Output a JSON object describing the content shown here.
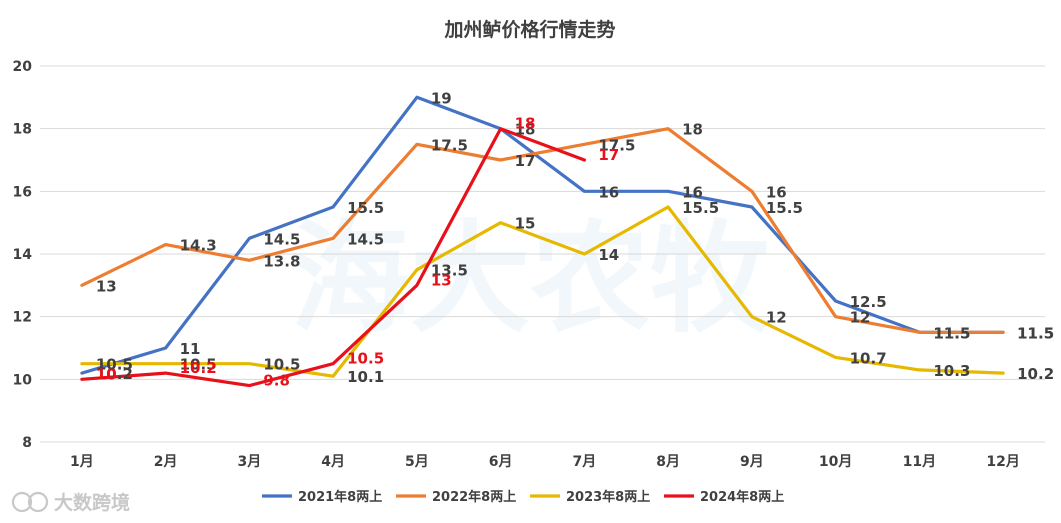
{
  "chart_data": {
    "type": "line",
    "title": "加州鲈价格行情走势",
    "categories": [
      "1月",
      "2月",
      "3月",
      "4月",
      "5月",
      "6月",
      "7月",
      "8月",
      "9月",
      "10月",
      "11月",
      "12月"
    ],
    "ylim": [
      8,
      20
    ],
    "yticks": [
      8,
      10,
      12,
      14,
      16,
      18,
      20
    ],
    "grid": true,
    "legend_position": "bottom",
    "series": [
      {
        "name": "2021年8两上",
        "color": "#4472c4",
        "values": [
          10.2,
          11,
          14.5,
          15.5,
          19,
          18,
          16,
          16,
          15.5,
          12.5,
          11.5,
          11.5
        ]
      },
      {
        "name": "2022年8两上",
        "color": "#ed7d31",
        "values": [
          13,
          14.3,
          13.8,
          14.5,
          17.5,
          17,
          17.5,
          18,
          16,
          12,
          11.5,
          11.5
        ]
      },
      {
        "name": "2023年8两上",
        "color": "#e6b800",
        "values": [
          10.5,
          10.5,
          10.5,
          10.1,
          13.5,
          15,
          14,
          15.5,
          12,
          10.7,
          10.3,
          10.2
        ]
      },
      {
        "name": "2024年8两上",
        "color": "#e8101a",
        "values": [
          10,
          10.2,
          9.8,
          10.5,
          13,
          18,
          17,
          null,
          null,
          null,
          null,
          null
        ]
      }
    ]
  },
  "watermark": "海大农牧",
  "brand": "大数跨境"
}
